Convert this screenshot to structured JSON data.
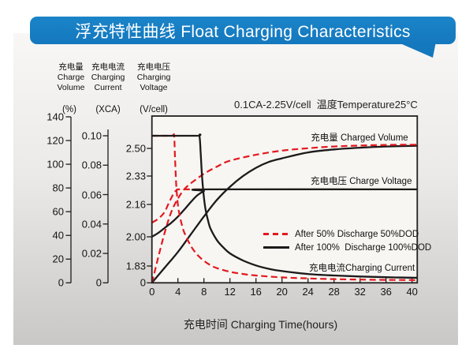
{
  "banner": {
    "title": "浮充特性曲线 Float Charging Characteristics",
    "color": "#1478be",
    "color_light": "#1b84c8"
  },
  "annotation": "0.1CA-2.25V/cell  温度Temperature25°C",
  "legend": [
    {
      "style": "dashed-red",
      "label": "After 50% Discharge 50%DOD"
    },
    {
      "style": "solid-black",
      "label": "After 100%  Discharge 100%DOD"
    }
  ],
  "chart_data": {
    "type": "line",
    "title": "浮充特性曲线 Float Charging Characteristics",
    "condition": "0.1CA-2.25V/cell  温度Temperature25°C",
    "grid": false,
    "legend_position": "center-right",
    "x_axis": {
      "label": "充电时间 Charging Time(hours)",
      "range": [
        0,
        40
      ],
      "ticks": [
        0,
        4,
        8,
        12,
        16,
        20,
        24,
        28,
        32,
        36,
        40
      ]
    },
    "y_axes": [
      {
        "id": "pct",
        "header": "充电量\nCharge\nVolume",
        "unit": "(%)",
        "range": [
          0,
          140
        ],
        "ticks": [
          "0",
          "20",
          "40",
          "60",
          "80",
          "100",
          "120",
          "140"
        ]
      },
      {
        "id": "xca",
        "header": "充电电流\nCharging\nCurrent",
        "unit": "(XCA)",
        "range": [
          0,
          0.1
        ],
        "ticks": [
          "0",
          "0.02",
          "0.04",
          "0.06",
          "0.08",
          "0.10"
        ]
      },
      {
        "id": "v",
        "header": "充电电压\nCharging\nVoltage",
        "unit": "(V/cell)",
        "range": [
          0,
          2.5
        ],
        "ticks": [
          "0",
          "1.83",
          "2.00",
          "2.16",
          "2.33",
          "2.50"
        ]
      }
    ],
    "series_labels": {
      "volume": "充电量 Charged Volume",
      "voltage": "充电电压 Charge Voltage",
      "current": "充电电流Charging Current"
    },
    "colors": {
      "red": "#e3191f",
      "black": "#1c1a1a"
    },
    "series": [
      {
        "id": "volume_100dod",
        "name": "Charged Volume after 100% discharge",
        "axis": "pct",
        "color": "black",
        "dash": false,
        "points": [
          [
            0,
            0
          ],
          [
            2,
            13
          ],
          [
            4,
            26
          ],
          [
            6,
            41
          ],
          [
            8,
            56
          ],
          [
            10,
            70
          ],
          [
            12,
            81
          ],
          [
            14,
            90
          ],
          [
            16,
            97
          ],
          [
            18,
            102
          ],
          [
            20,
            105
          ],
          [
            24,
            110
          ],
          [
            28,
            112.5
          ],
          [
            32,
            114
          ],
          [
            36,
            115
          ],
          [
            40,
            115.5
          ]
        ]
      },
      {
        "id": "volume_50dod",
        "name": "Charged Volume after 50% discharge",
        "axis": "pct",
        "color": "red",
        "dash": true,
        "points": [
          [
            0,
            0
          ],
          [
            1,
            22
          ],
          [
            2,
            43
          ],
          [
            3,
            60
          ],
          [
            4,
            71
          ],
          [
            5,
            79
          ],
          [
            6,
            84
          ],
          [
            7,
            88
          ],
          [
            8,
            92
          ],
          [
            10,
            98
          ],
          [
            12,
            103
          ],
          [
            16,
            108
          ],
          [
            20,
            111.5
          ],
          [
            24,
            113.5
          ],
          [
            28,
            115
          ],
          [
            32,
            115.8
          ],
          [
            36,
            116.3
          ],
          [
            40,
            116.5
          ]
        ]
      },
      {
        "id": "voltage_50dod",
        "name": "Charge Voltage after 50% discharge",
        "axis": "v",
        "color": "red",
        "dash": true,
        "points": [
          [
            0,
            2.07
          ],
          [
            0.8,
            2.085
          ],
          [
            1.5,
            2.105
          ],
          [
            2,
            2.125
          ],
          [
            2.5,
            2.16
          ],
          [
            3,
            2.2
          ],
          [
            3.4,
            2.23
          ],
          [
            3.8,
            2.245
          ],
          [
            4.2,
            2.25
          ],
          [
            7.5,
            2.25
          ]
        ]
      },
      {
        "id": "voltage_100dod",
        "name": "Charge Voltage after 100% discharge",
        "axis": "v",
        "color": "black",
        "dash": false,
        "points": [
          [
            0,
            2.0
          ],
          [
            1,
            2.02
          ],
          [
            2,
            2.045
          ],
          [
            3,
            2.07
          ],
          [
            4,
            2.1
          ],
          [
            5,
            2.135
          ],
          [
            6,
            2.175
          ],
          [
            7,
            2.215
          ],
          [
            8,
            2.24
          ],
          [
            8.7,
            2.25
          ],
          [
            40,
            2.25
          ]
        ]
      },
      {
        "id": "current_50dod",
        "name": "Charging Current after 50% discharge",
        "axis": "xca",
        "color": "red",
        "dash": true,
        "points": [
          [
            0,
            0.1
          ],
          [
            3.0,
            0.1
          ],
          [
            3.4,
            0.1
          ],
          [
            3.55,
            0.085
          ],
          [
            3.75,
            0.066
          ],
          [
            4,
            0.053
          ],
          [
            4.3,
            0.045
          ],
          [
            4.7,
            0.038
          ],
          [
            5,
            0.034
          ],
          [
            6,
            0.025
          ],
          [
            7,
            0.019
          ],
          [
            8,
            0.015
          ],
          [
            9,
            0.012
          ],
          [
            10,
            0.01
          ],
          [
            12,
            0.0075
          ],
          [
            14,
            0.006
          ],
          [
            16,
            0.005
          ],
          [
            20,
            0.0037
          ],
          [
            24,
            0.003
          ],
          [
            28,
            0.0025
          ],
          [
            32,
            0.0022
          ],
          [
            36,
            0.002
          ],
          [
            40,
            0.0019
          ]
        ]
      },
      {
        "id": "current_100dod",
        "name": "Charging Current after 100% discharge",
        "axis": "xca",
        "color": "black",
        "dash": false,
        "points": [
          [
            0,
            0.1
          ],
          [
            6.8,
            0.1
          ],
          [
            7.3,
            0.1
          ],
          [
            7.5,
            0.088
          ],
          [
            7.7,
            0.073
          ],
          [
            7.95,
            0.06
          ],
          [
            8.2,
            0.051
          ],
          [
            8.6,
            0.043
          ],
          [
            9,
            0.037
          ],
          [
            10,
            0.029
          ],
          [
            11,
            0.024
          ],
          [
            12,
            0.02
          ],
          [
            14,
            0.0152
          ],
          [
            16,
            0.0118
          ],
          [
            18,
            0.0095
          ],
          [
            20,
            0.008
          ],
          [
            24,
            0.006
          ],
          [
            28,
            0.005
          ],
          [
            32,
            0.0043
          ],
          [
            36,
            0.0038
          ],
          [
            40,
            0.0035
          ]
        ]
      }
    ]
  }
}
